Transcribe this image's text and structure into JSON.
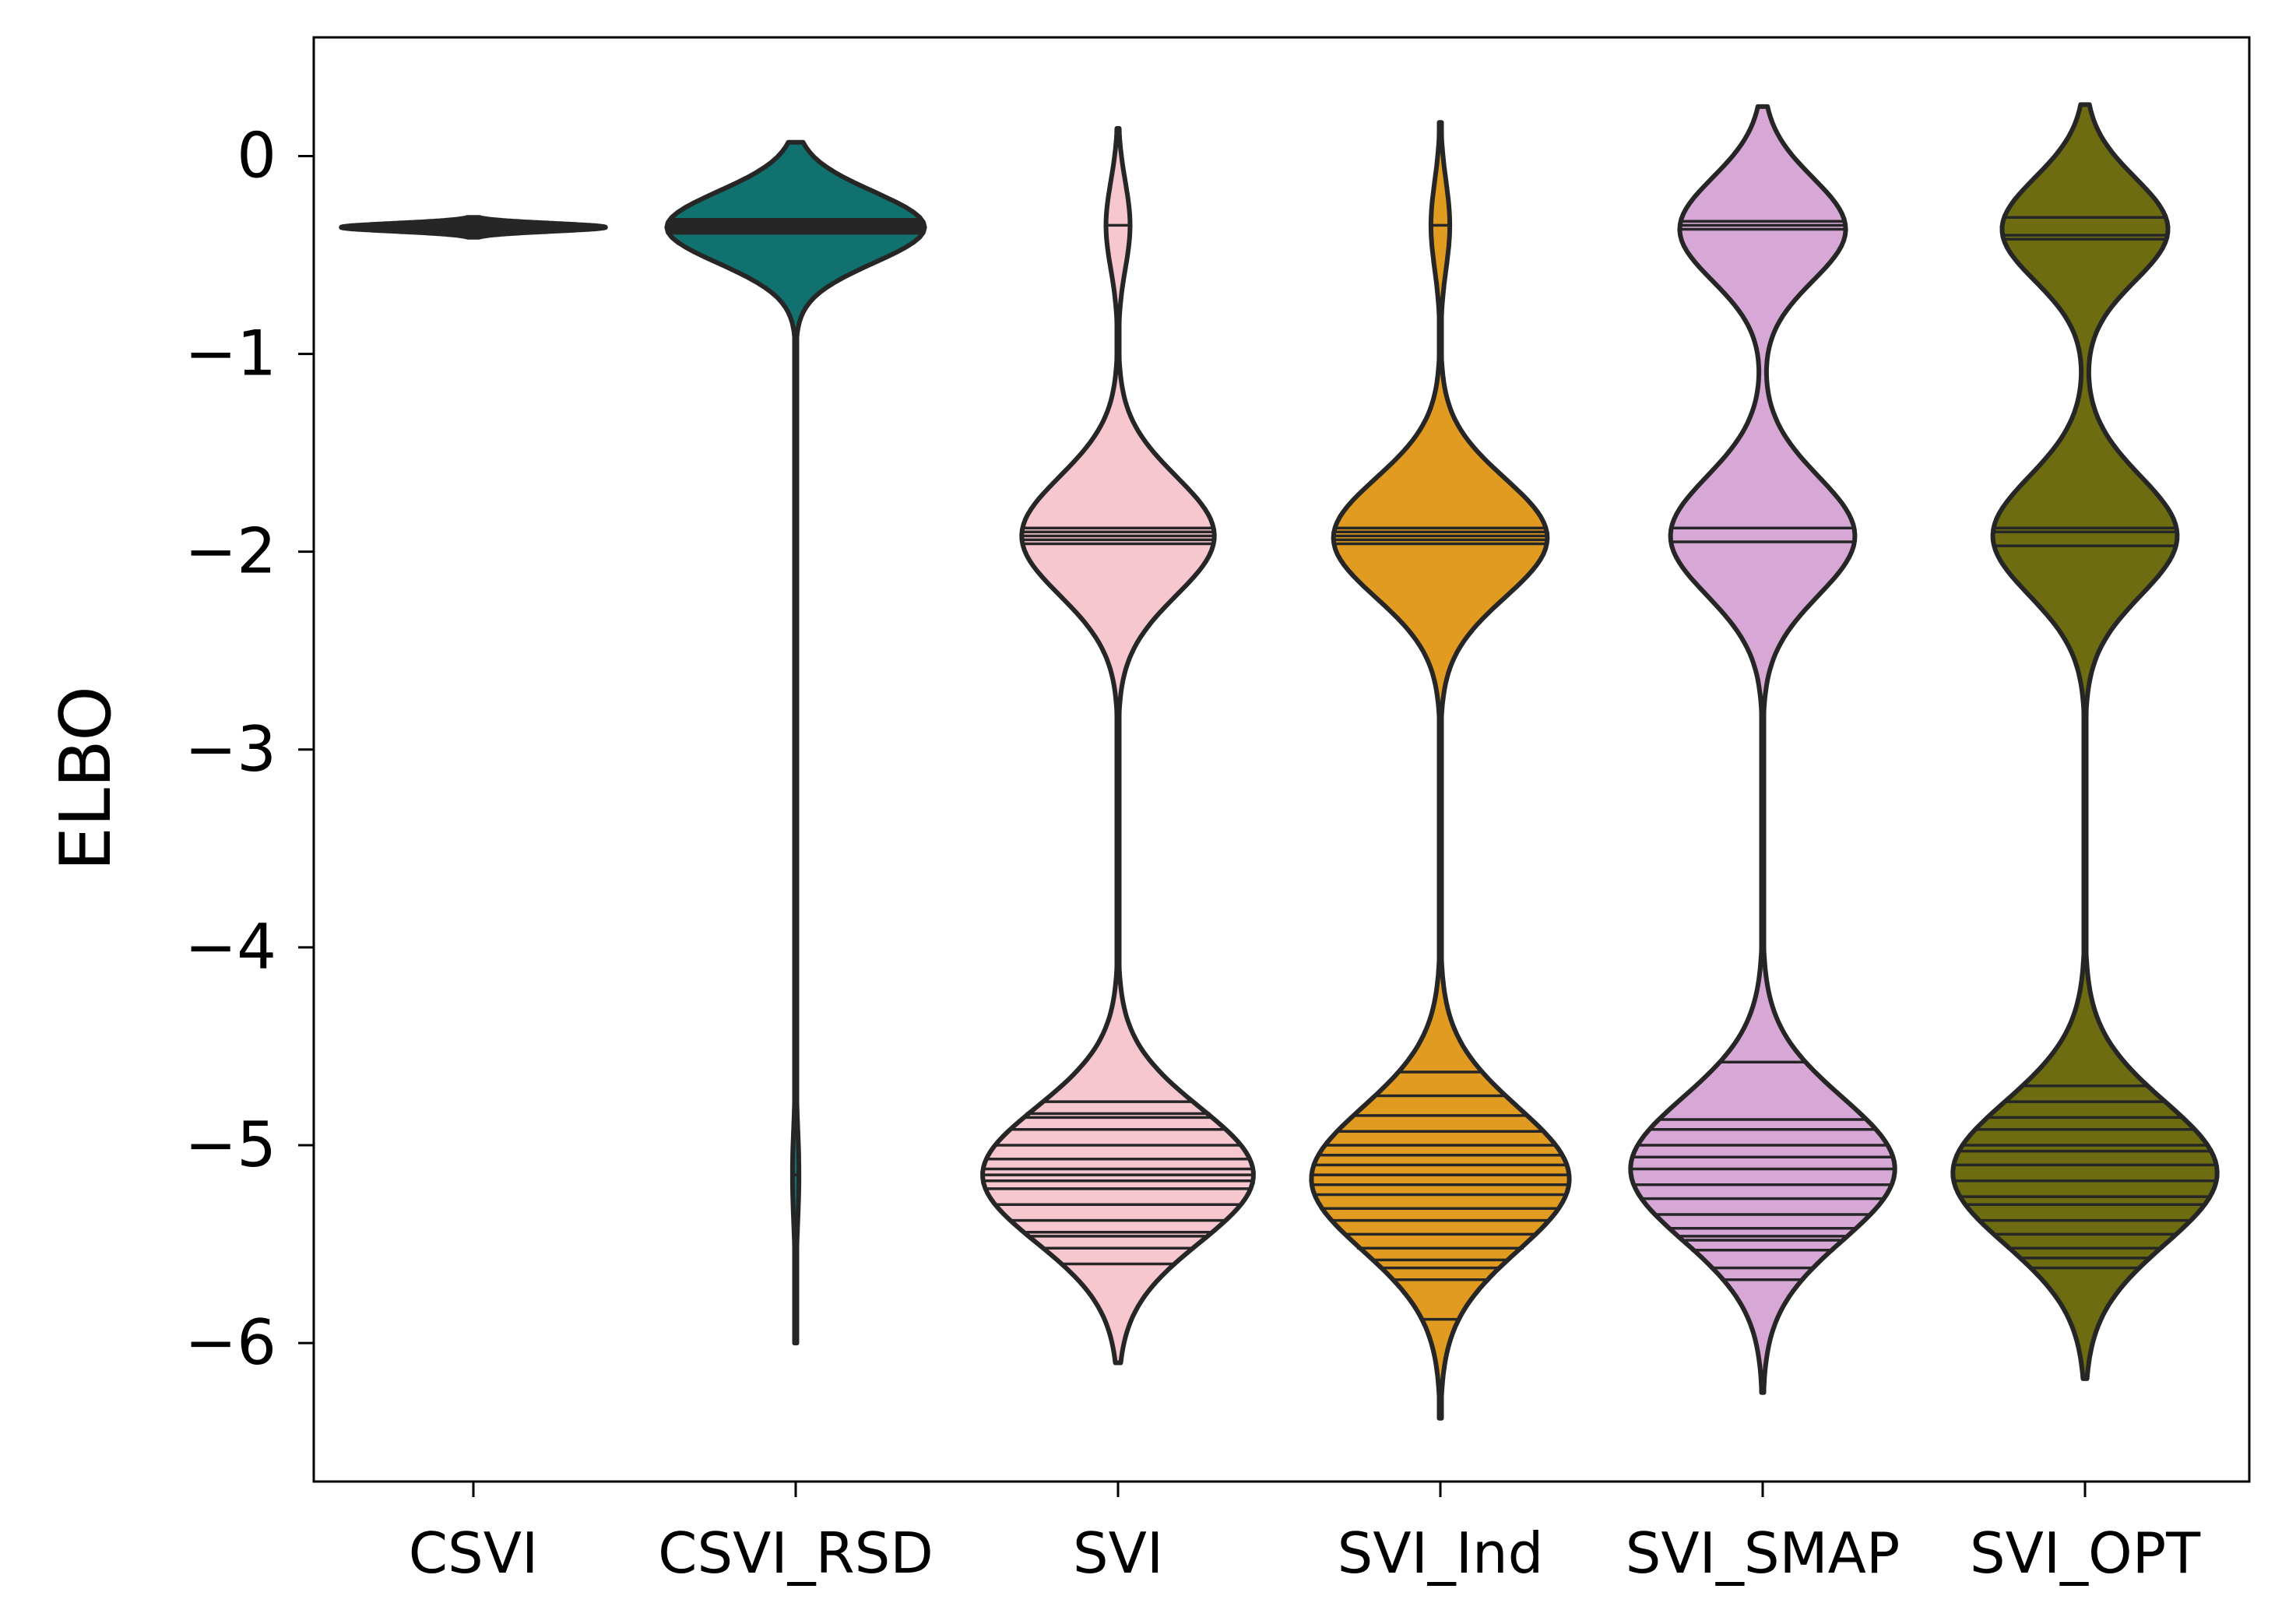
{
  "chart_data": {
    "type": "violin",
    "ylabel": "ELBO",
    "xlabel": "",
    "title": "",
    "ylim": [
      -6.7,
      0.6
    ],
    "yticks": [
      0,
      -1,
      -2,
      -3,
      -4,
      -5,
      -6
    ],
    "ytick_labels": [
      "0",
      "−1",
      "−2",
      "−3",
      "−4",
      "−5",
      "−6"
    ],
    "categories": [
      "CSVI",
      "CSVI_RSD",
      "SVI",
      "SVI_Ind",
      "SVI_SMAP",
      "SVI_OPT"
    ],
    "grid": false,
    "legend": "none",
    "inner": "stick",
    "series": [
      {
        "category": "CSVI",
        "color": "#1f1f1f",
        "ymin": -0.41,
        "ymax": -0.31,
        "halfwidth": 0.41,
        "modes": [
          {
            "center": -0.36,
            "sigma": 0.02,
            "weight": 1.0
          }
        ],
        "stick_values": [
          -0.33,
          -0.34,
          -0.35,
          -0.36,
          -0.36,
          -0.37,
          -0.38,
          -0.39
        ]
      },
      {
        "category": "CSVI_RSD",
        "color": "#10716f",
        "ymin": -6.0,
        "ymax": 0.07,
        "halfwidth": 0.4,
        "modes": [
          {
            "center": -0.36,
            "sigma": 0.18,
            "weight": 1.0
          },
          {
            "center": -5.15,
            "sigma": 0.25,
            "weight": 0.025
          }
        ],
        "stick_values": [
          -0.32,
          -0.33,
          -0.34,
          -0.35,
          -0.36,
          -0.37,
          -0.38,
          -0.39,
          -5.15
        ]
      },
      {
        "category": "SVI",
        "color": "#f6c7cf",
        "ymin": -6.1,
        "ymax": 0.14,
        "halfwidth": 0.42,
        "modes": [
          {
            "center": -0.35,
            "sigma": 0.22,
            "weight": 0.04
          },
          {
            "center": -1.92,
            "sigma": 0.3,
            "weight": 0.32
          },
          {
            "center": -5.15,
            "sigma": 0.34,
            "weight": 0.45
          }
        ],
        "stick_values": [
          -0.35,
          -1.88,
          -1.9,
          -1.92,
          -1.94,
          -1.96,
          -4.78,
          -4.84,
          -4.86,
          -4.92,
          -5.0,
          -5.07,
          -5.12,
          -5.15,
          -5.18,
          -5.22,
          -5.3,
          -5.38,
          -5.44,
          -5.46,
          -5.52,
          -5.6
        ]
      },
      {
        "category": "SVI_Ind",
        "color": "#e09b20",
        "ymin": -6.38,
        "ymax": 0.17,
        "halfwidth": 0.4,
        "modes": [
          {
            "center": -0.35,
            "sigma": 0.22,
            "weight": 0.03
          },
          {
            "center": -1.93,
            "sigma": 0.3,
            "weight": 0.34
          },
          {
            "center": -5.17,
            "sigma": 0.36,
            "weight": 0.41
          }
        ],
        "stick_values": [
          -0.35,
          -1.88,
          -1.9,
          -1.92,
          -1.94,
          -1.96,
          -4.63,
          -4.75,
          -4.85,
          -4.93,
          -5.0,
          -5.05,
          -5.1,
          -5.15,
          -5.2,
          -5.25,
          -5.32,
          -5.38,
          -5.45,
          -5.52,
          -5.58,
          -5.62,
          -5.68,
          -5.88
        ]
      },
      {
        "category": "SVI_SMAP",
        "color": "#d7a8d6",
        "ymin": -6.25,
        "ymax": 0.25,
        "halfwidth": 0.41,
        "modes": [
          {
            "center": -0.37,
            "sigma": 0.26,
            "weight": 0.27
          },
          {
            "center": -1.92,
            "sigma": 0.3,
            "weight": 0.3
          },
          {
            "center": -5.12,
            "sigma": 0.36,
            "weight": 0.43
          }
        ],
        "stick_values": [
          -0.33,
          -0.35,
          -0.37,
          -1.88,
          -1.95,
          -4.58,
          -4.87,
          -4.92,
          -5.0,
          -5.06,
          -5.12,
          -5.2,
          -5.27,
          -5.35,
          -5.42,
          -5.46,
          -5.48,
          -5.53,
          -5.62,
          -5.68
        ]
      },
      {
        "category": "SVI_OPT",
        "color": "#6e6c11",
        "ymin": -6.18,
        "ymax": 0.26,
        "halfwidth": 0.41,
        "modes": [
          {
            "center": -0.37,
            "sigma": 0.26,
            "weight": 0.27
          },
          {
            "center": -1.92,
            "sigma": 0.3,
            "weight": 0.3
          },
          {
            "center": -5.14,
            "sigma": 0.36,
            "weight": 0.43
          }
        ],
        "stick_values": [
          -0.31,
          -0.4,
          -0.42,
          -1.88,
          -1.9,
          -1.97,
          -4.7,
          -4.78,
          -4.86,
          -4.92,
          -5.0,
          -5.03,
          -5.1,
          -5.18,
          -5.26,
          -5.3,
          -5.38,
          -5.45,
          -5.52,
          -5.57,
          -5.62
        ]
      }
    ]
  }
}
